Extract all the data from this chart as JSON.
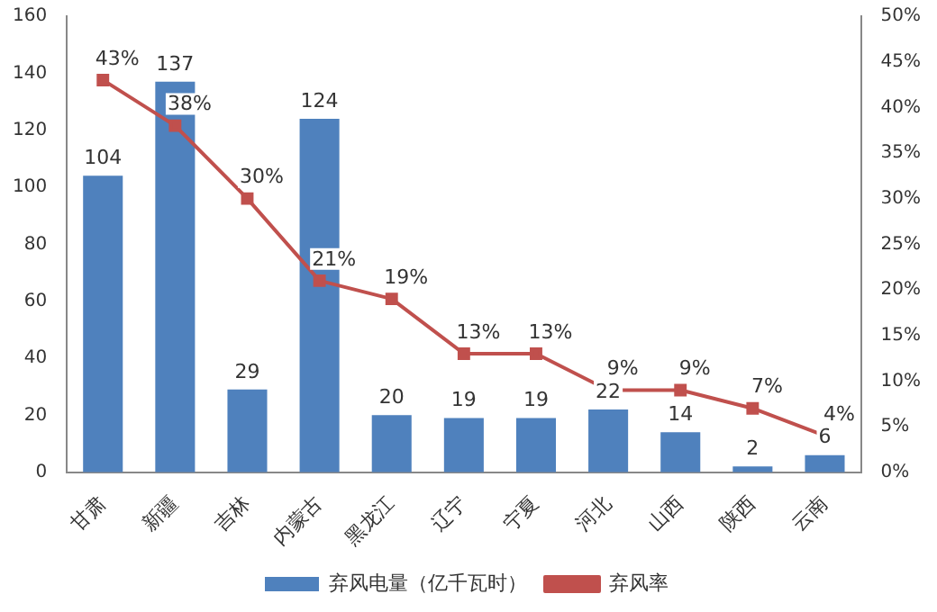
{
  "chart_data": {
    "type": "bar",
    "categories": [
      "甘肃",
      "新疆",
      "吉林",
      "内蒙古",
      "黑龙江",
      "辽宁",
      "宁夏",
      "河北",
      "山西",
      "陕西",
      "云南"
    ],
    "series": [
      {
        "name": "弃风电量（亿千瓦时）",
        "color": "#4f81bd",
        "values": [
          104,
          137,
          29,
          124,
          20,
          19,
          19,
          22,
          14,
          2,
          6
        ],
        "value_labels": [
          "104",
          "137",
          "29",
          "124",
          "20",
          "19",
          "19",
          "22",
          "14",
          "2",
          "6"
        ]
      },
      {
        "name": "弃风率",
        "type": "line",
        "axis": "y2",
        "color": "#c0504d",
        "marker": "square",
        "values": [
          43,
          38,
          30,
          21,
          19,
          13,
          13,
          9,
          9,
          7,
          4
        ],
        "value_labels": [
          "43%",
          "38%",
          "30%",
          "21%",
          "19%",
          "13%",
          "13%",
          "9%",
          "9%",
          "7%",
          "4%"
        ]
      }
    ],
    "ylim": [
      0,
      160
    ],
    "yticks": [
      0,
      20,
      40,
      60,
      80,
      100,
      120,
      140,
      160
    ],
    "y2lim": [
      0,
      50
    ],
    "y2ticks": [
      {
        "value": 0,
        "label": "0%"
      },
      {
        "value": 5,
        "label": "5%"
      },
      {
        "value": 10,
        "label": "10%"
      },
      {
        "value": 15,
        "label": "15%"
      },
      {
        "value": 20,
        "label": "20%"
      },
      {
        "value": 25,
        "label": "25%"
      },
      {
        "value": 30,
        "label": "30%"
      },
      {
        "value": 35,
        "label": "35%"
      },
      {
        "value": 40,
        "label": "40%"
      },
      {
        "value": 45,
        "label": "45%"
      },
      {
        "value": 50,
        "label": "50%"
      }
    ],
    "grid": false,
    "legend": "bottom"
  }
}
